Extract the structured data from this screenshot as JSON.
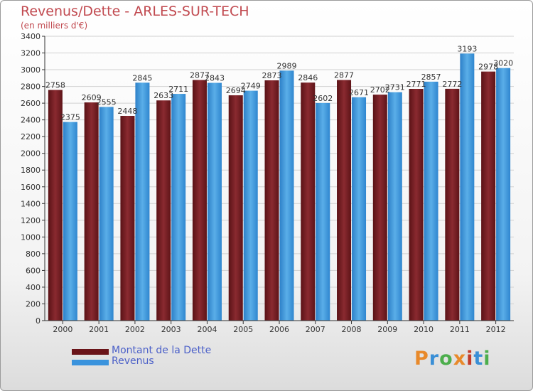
{
  "header": {
    "title": "Revenus/Dette - ARLES-SUR-TECH",
    "subtitle": "(en milliers d'€)"
  },
  "legend": {
    "debt_label": "Montant de la Dette",
    "revenue_label": "Revenus"
  },
  "logo": {
    "text": "Proxiti",
    "colors": [
      "#e8892a",
      "#3a8fd6",
      "#4cae4c",
      "#e8892a",
      "#c23b2a",
      "#3a8fd6",
      "#4cae4c"
    ]
  },
  "colors": {
    "debt": "#7a1f24",
    "revenue": "#3a93dd",
    "axis": "#333333",
    "grid": "#d0d0d0"
  },
  "chart_data": {
    "type": "bar",
    "categories": [
      "2000",
      "2001",
      "2002",
      "2003",
      "2004",
      "2005",
      "2006",
      "2007",
      "2008",
      "2009",
      "2010",
      "2011",
      "2012"
    ],
    "series": [
      {
        "name": "Montant de la Dette",
        "values": [
          2758,
          2609,
          2448,
          2633,
          2877,
          2694,
          2873,
          2846,
          2877,
          2702,
          2771,
          2772,
          2978
        ]
      },
      {
        "name": "Revenus",
        "values": [
          2375,
          2555,
          2845,
          2711,
          2843,
          2749,
          2989,
          2602,
          2671,
          2731,
          2857,
          3193,
          3020
        ]
      }
    ],
    "ylim": [
      0,
      3400
    ],
    "yticks": [
      0,
      200,
      400,
      600,
      800,
      1000,
      1200,
      1400,
      1600,
      1800,
      2000,
      2200,
      2400,
      2600,
      2800,
      3000,
      3200,
      3400
    ],
    "xlabel": "",
    "ylabel": "",
    "grid": true,
    "legend_position": "bottom-left"
  }
}
